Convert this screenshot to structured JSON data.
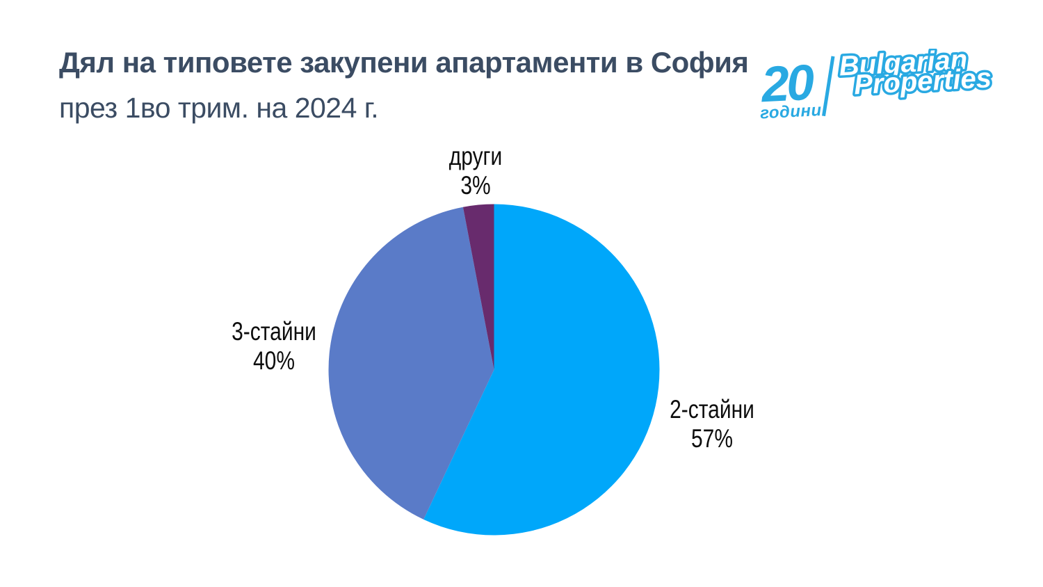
{
  "header": {
    "title_bold": "Дял на типовете закупени апартаменти в София",
    "title_regular": "през 1во трим. на 2024 г.",
    "title_color": "#3b4c63"
  },
  "logo": {
    "years_number": "20",
    "years_word": "години",
    "brand_line1": "Bulgarian",
    "brand_line2": "Properties",
    "color": "#29a9e2",
    "outline_fill": "#ffffff"
  },
  "chart_data": {
    "type": "pie",
    "title": "Дял на типовете закупени апартаменти в София през 1во трим. на 2024 г.",
    "labels": [
      "2-стайни",
      "3-стайни",
      "други"
    ],
    "slugs": [
      "2-stayni",
      "3-stayni",
      "drugi"
    ],
    "values": [
      57,
      40,
      3
    ],
    "unit": "%",
    "colors": [
      "#00a7fa",
      "#5a7bc8",
      "#682b6d"
    ],
    "display_labels": [
      {
        "name": "2-стайни",
        "pct": "57%"
      },
      {
        "name": "3-стайни",
        "pct": "40%"
      },
      {
        "name": "други",
        "pct": "3%"
      }
    ],
    "start_angle_deg": 0,
    "direction": "clockwise",
    "legend": "none",
    "label_color": "#0d0d0d"
  }
}
